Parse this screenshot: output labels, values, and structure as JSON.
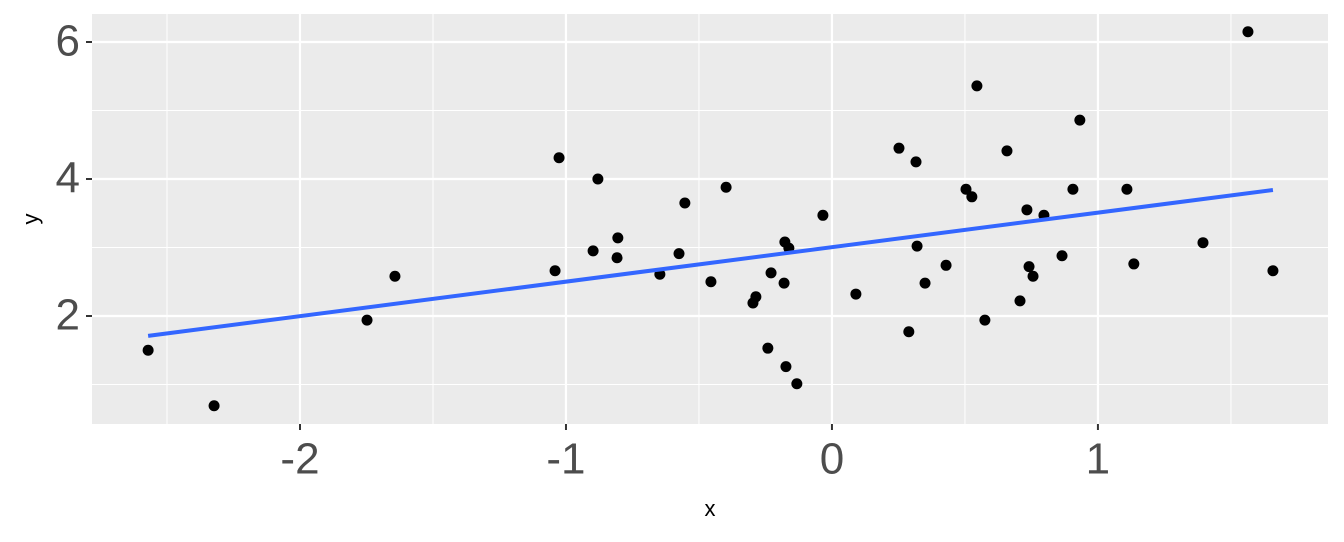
{
  "chart_data": {
    "type": "scatter",
    "x_label": "x",
    "y_label": "y",
    "xlim": [
      -2.782,
      1.865
    ],
    "ylim": [
      0.423,
      6.409
    ],
    "xticks": [
      -2,
      -1,
      0,
      1
    ],
    "yticks": [
      2,
      4,
      6
    ],
    "minor_xticks": [
      -2.5,
      -1.5,
      -0.5,
      0.5,
      1.5
    ],
    "minor_yticks": [
      1,
      3,
      5
    ],
    "grid": true,
    "points": {
      "color": "#000000",
      "x": [
        -2.571,
        -2.323,
        -1.748,
        -1.643,
        -1.041,
        -1.026,
        -0.898,
        -0.88,
        -0.805,
        -0.808,
        -0.647,
        -0.575,
        -0.553,
        -0.455,
        -0.398,
        -0.297,
        -0.286,
        -0.241,
        -0.229,
        -0.18,
        -0.177,
        -0.173,
        -0.162,
        -0.132,
        -0.034,
        0.09,
        0.252,
        0.289,
        0.316,
        0.32,
        0.35,
        0.429,
        0.504,
        0.526,
        0.545,
        0.575,
        0.658,
        0.707,
        0.733,
        0.741,
        0.756,
        0.797,
        0.865,
        0.906,
        0.932,
        1.109,
        1.135,
        1.395,
        1.564,
        1.658
      ],
      "values": [
        1.5,
        0.69,
        1.94,
        2.58,
        2.66,
        4.31,
        2.95,
        4.0,
        3.14,
        2.85,
        2.61,
        2.91,
        3.65,
        2.5,
        3.88,
        2.19,
        2.28,
        1.53,
        2.63,
        2.48,
        3.08,
        1.26,
        2.99,
        1.01,
        3.47,
        2.32,
        4.45,
        1.77,
        4.25,
        3.02,
        2.48,
        2.74,
        3.85,
        3.74,
        5.36,
        1.94,
        4.41,
        2.22,
        3.55,
        2.72,
        2.58,
        3.47,
        2.88,
        3.85,
        4.86,
        3.85,
        2.76,
        3.07,
        6.15,
        2.66
      ]
    },
    "fit_line": {
      "color": "#3366ff",
      "x": [
        -2.571,
        1.658
      ],
      "values": [
        1.71,
        3.84
      ]
    }
  }
}
